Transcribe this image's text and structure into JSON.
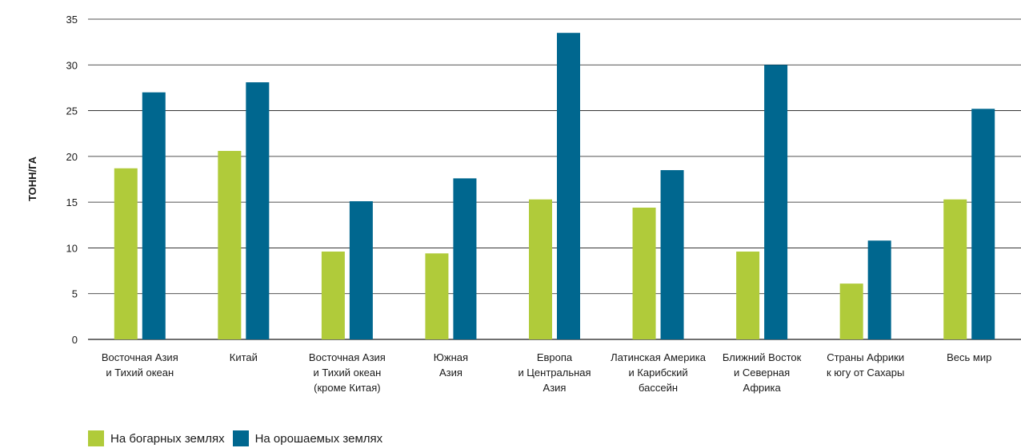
{
  "chart_data": {
    "type": "bar",
    "title": "",
    "xlabel": "",
    "ylabel": "ТОНН/ГА",
    "ylim": [
      0,
      35
    ],
    "yticks": [
      0,
      5,
      10,
      15,
      20,
      25,
      30,
      35
    ],
    "grid": true,
    "legend_position": "bottom-left",
    "categories": [
      [
        "Восточная Азия",
        "и Тихий океан"
      ],
      [
        "Китай"
      ],
      [
        "Восточная Азия",
        "и Тихий океан",
        "(кроме Китая)"
      ],
      [
        "Южная",
        "Азия"
      ],
      [
        "Европа",
        "и Центральная",
        "Азия"
      ],
      [
        "Латинская Америка",
        "и Карибский",
        "бассейн"
      ],
      [
        "Ближний Восток",
        "и Северная",
        "Африка"
      ],
      [
        "Страны Африки",
        "к югу от Сахары"
      ],
      [
        "Весь мир"
      ]
    ],
    "series": [
      {
        "name": "На богарных землях",
        "color": "#b0cb3a",
        "values": [
          18.7,
          20.6,
          9.6,
          9.4,
          15.3,
          14.4,
          9.6,
          6.1,
          15.3
        ]
      },
      {
        "name": "На орошаемых землях",
        "color": "#00678f",
        "values": [
          27.0,
          28.1,
          15.1,
          17.6,
          33.5,
          18.5,
          30.0,
          10.8,
          25.2
        ]
      }
    ]
  }
}
